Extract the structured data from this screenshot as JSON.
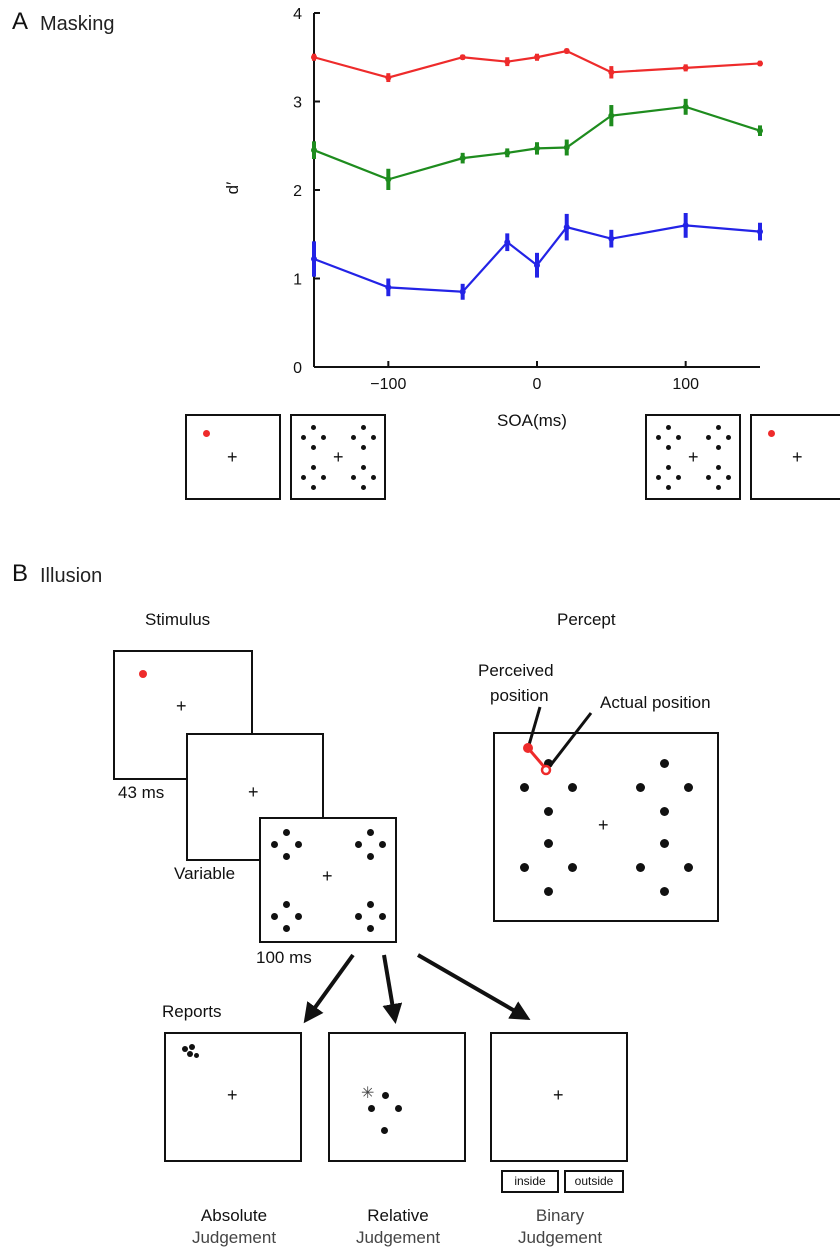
{
  "panel_a": {
    "letter": "A",
    "title": "Masking"
  },
  "panel_b": {
    "letter": "B",
    "title": "Illusion",
    "stimulus_label": "Stimulus",
    "percept_label": "Percept",
    "durations": {
      "first": "43 ms",
      "second": "Variable",
      "third": "100 ms"
    },
    "perceived_position_label": "Perceived\nposition",
    "perceived_line1": "Perceived",
    "perceived_line2": "position",
    "actual_position_label": "Actual position",
    "reports_label": "Reports",
    "reports": [
      {
        "line1": "Absolute",
        "line2": "Judgement"
      },
      {
        "line1": "Relative",
        "line2": "Judgement"
      },
      {
        "line1": "Binary",
        "line2": "Judgement"
      }
    ],
    "binary_buttons": [
      "inside",
      "outside"
    ],
    "cross": "+"
  },
  "colors": {
    "red": "#ee2b2b",
    "green": "#1e8c1e",
    "blue": "#2323e6",
    "black": "#111111"
  },
  "chart_data": {
    "type": "line",
    "xlabel": "SOA(ms)",
    "ylabel": "d′",
    "xlim": [
      -150,
      150
    ],
    "ylim": [
      0,
      4
    ],
    "xticks": [
      -100,
      0,
      100
    ],
    "xtick_labels": [
      "−100",
      "0",
      "100"
    ],
    "yticks": [
      0,
      1,
      2,
      3,
      4
    ],
    "x": [
      -150,
      -100,
      -50,
      -20,
      0,
      20,
      50,
      100,
      150
    ],
    "series": [
      {
        "color": "#ee2b2b",
        "values": [
          3.5,
          3.27,
          3.5,
          3.45,
          3.5,
          3.57,
          3.33,
          3.38,
          3.43
        ],
        "errors": [
          0.04,
          0.05,
          0.03,
          0.05,
          0.04,
          0.03,
          0.07,
          0.04,
          0.03
        ]
      },
      {
        "color": "#1e8c1e",
        "values": [
          2.45,
          2.12,
          2.36,
          2.42,
          2.47,
          2.48,
          2.84,
          2.94,
          2.67
        ],
        "errors": [
          0.1,
          0.12,
          0.06,
          0.05,
          0.07,
          0.09,
          0.12,
          0.09,
          0.06
        ]
      },
      {
        "color": "#2323e6",
        "values": [
          1.22,
          0.9,
          0.85,
          1.41,
          1.15,
          1.58,
          1.45,
          1.6,
          1.53
        ],
        "errors": [
          0.2,
          0.1,
          0.09,
          0.1,
          0.14,
          0.15,
          0.1,
          0.14,
          0.1
        ]
      }
    ],
    "grid": false,
    "legend": "none"
  }
}
